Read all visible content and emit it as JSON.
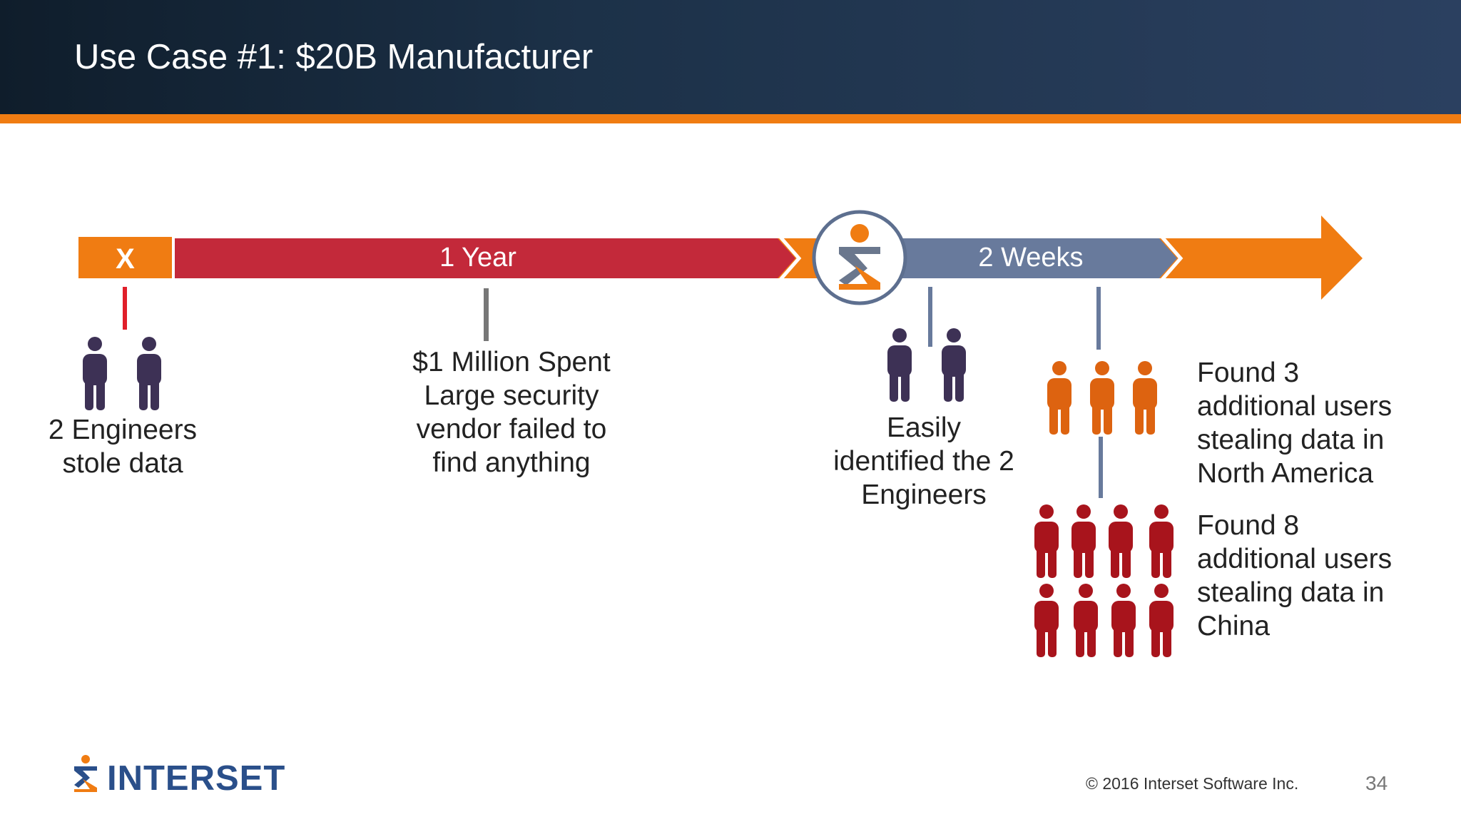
{
  "slide": {
    "title": "Use Case #1: $20B Manufacturer",
    "page_number": "34",
    "copyright": "© 2016  Interset  Software  Inc."
  },
  "logo": {
    "text": "INTERSET"
  },
  "timeline": {
    "marker_label": "X",
    "segment1_label": "1 Year",
    "segment2_label": "2 Weeks"
  },
  "callouts": {
    "engineers": [
      "2 Engineers",
      "stole data"
    ],
    "vendor": [
      "$1 Million Spent",
      "Large security",
      "vendor failed to",
      "find anything"
    ],
    "identified": [
      "Easily",
      "identified the 2",
      "Engineers"
    ],
    "north_america": [
      "Found 3",
      "additional users",
      "stealing data in",
      "North America"
    ],
    "china": [
      "Found 8",
      "additional users",
      "stealing data in",
      "China"
    ]
  },
  "colors": {
    "orange": "#f07c12",
    "red_bar": "#c3293a",
    "slate_bar": "#687a9c",
    "people_dark": "#3d3155",
    "people_orange": "#dd6310",
    "people_red": "#a8141c"
  }
}
